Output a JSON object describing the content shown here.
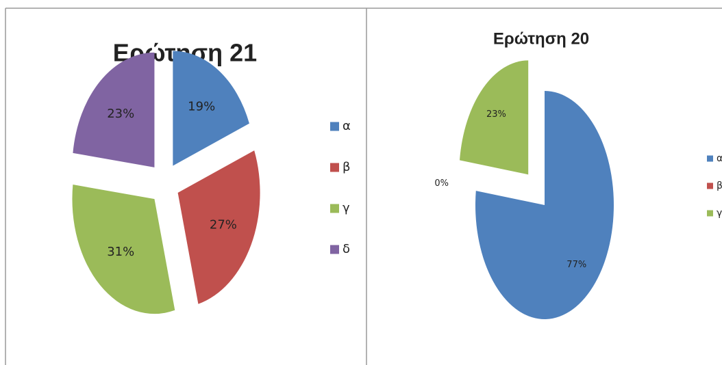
{
  "chart_data": [
    {
      "type": "pie",
      "title": "Ερώτηση 21",
      "categories": [
        "α",
        "β",
        "γ",
        "δ"
      ],
      "values": [
        19,
        27,
        31,
        23
      ],
      "value_labels": [
        "19%",
        "27%",
        "31%",
        "23%"
      ],
      "colors": [
        "#4f81bd",
        "#c0504d",
        "#9bbb59",
        "#8064a2"
      ],
      "legend": "right"
    },
    {
      "type": "pie",
      "title": "Ερώτηση 20",
      "categories": [
        "α",
        "β",
        "γ"
      ],
      "values": [
        77,
        0,
        23
      ],
      "value_labels": [
        "77%",
        "0%",
        "23%"
      ],
      "colors": [
        "#4f81bd",
        "#c0504d",
        "#9bbb59"
      ],
      "legend": "right"
    }
  ]
}
